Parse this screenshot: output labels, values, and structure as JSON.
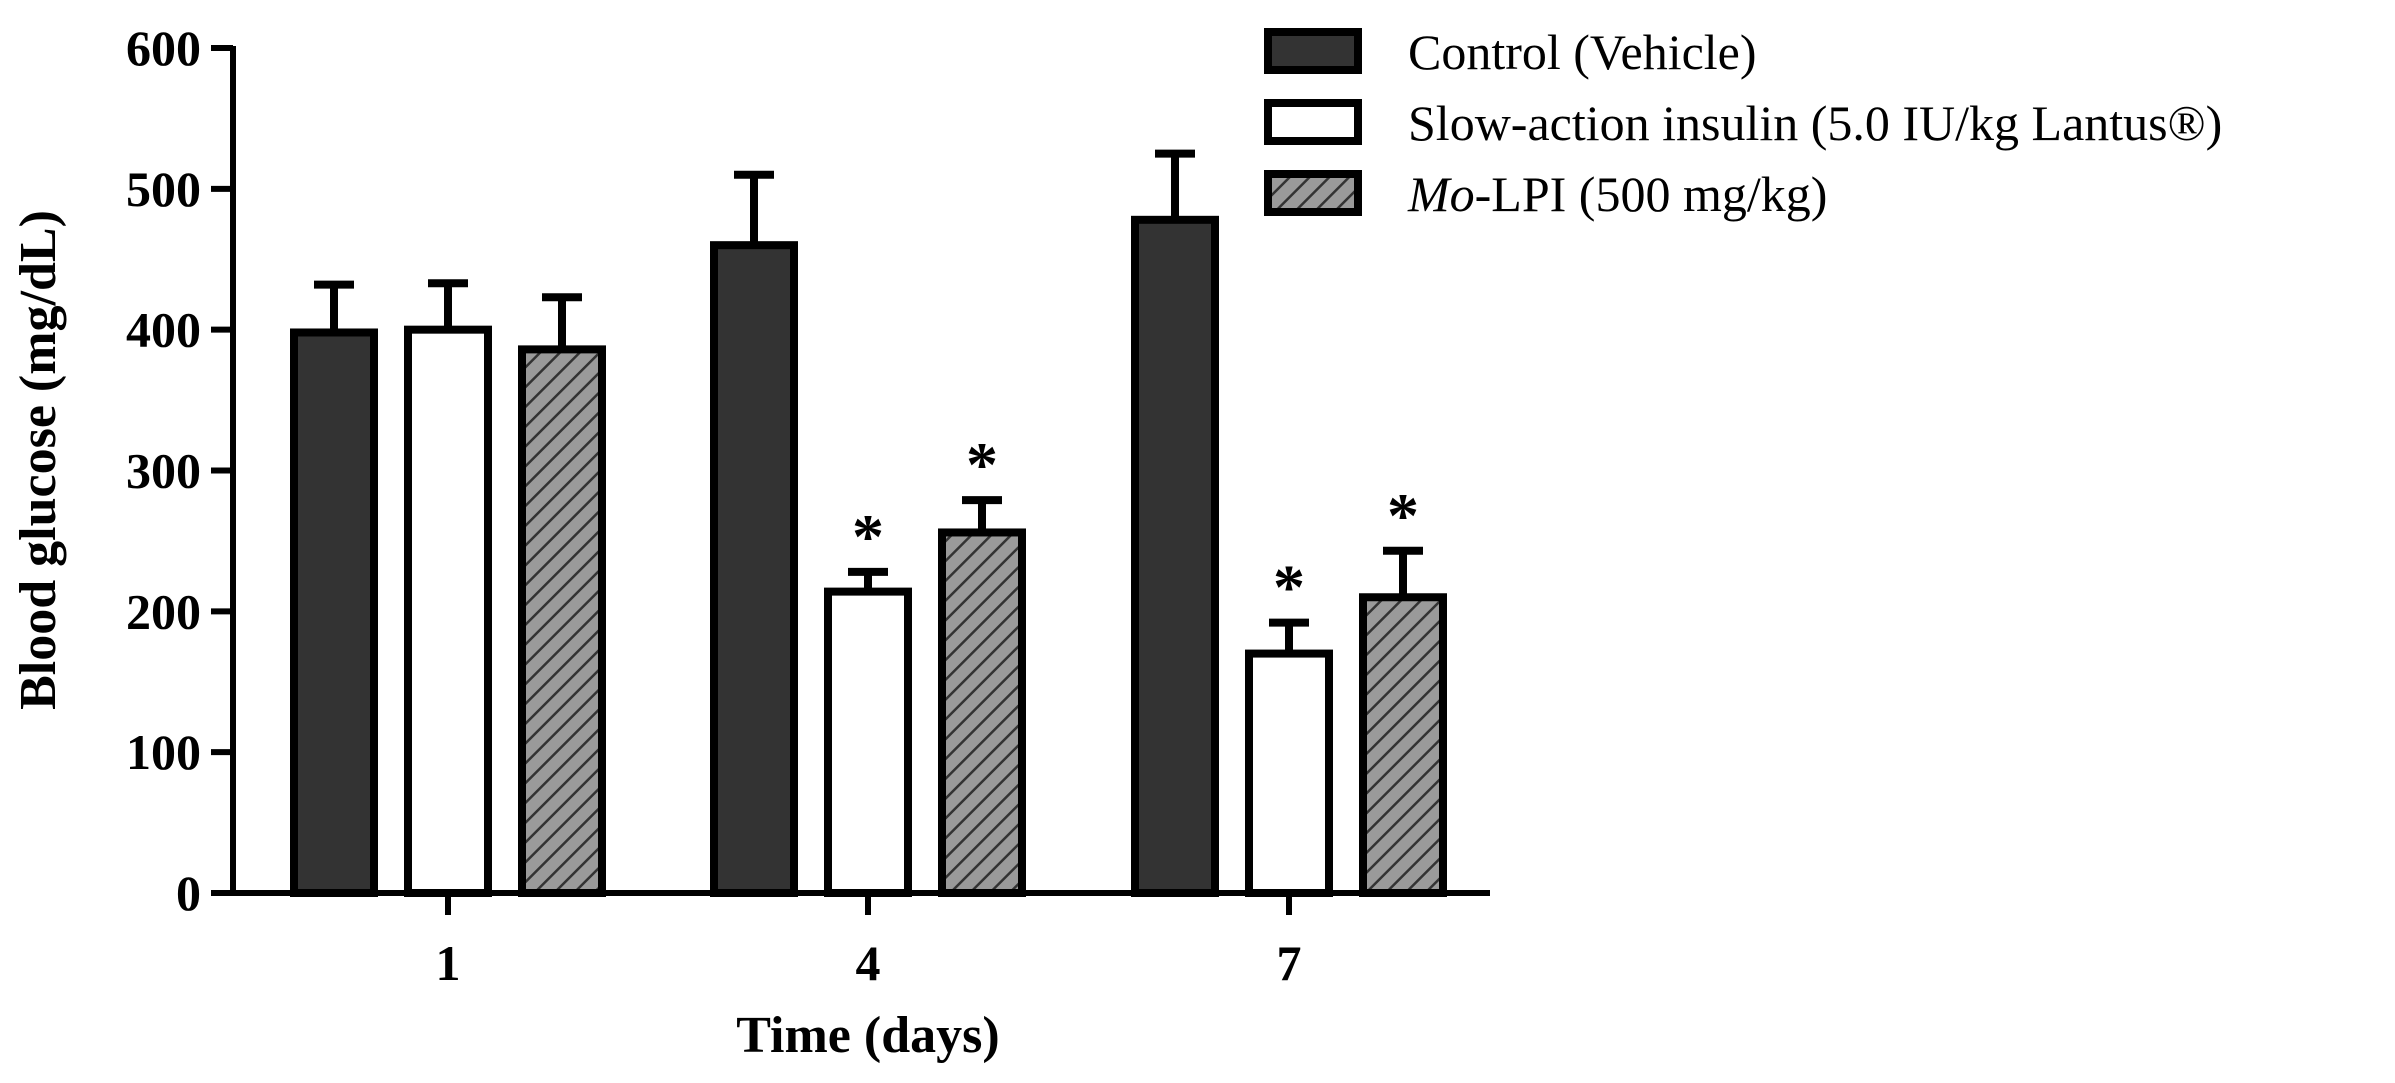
{
  "chart_data": {
    "type": "bar",
    "categories": [
      "1",
      "4",
      "7"
    ],
    "xlabel": "Time (days)",
    "ylabel": "Blood glucose (mg/dL)",
    "ylim": [
      0,
      600
    ],
    "yticks": [
      "0",
      "100",
      "200",
      "300",
      "400",
      "500",
      "600"
    ],
    "legend_position": "top-right",
    "series": [
      {
        "name": "Control (Vehicle)",
        "legend_prefix": "",
        "legend_suffix": "Control (Vehicle)",
        "fill": "#333333",
        "pattern": "solid",
        "values": [
          398,
          460,
          478
        ],
        "errors": [
          34,
          50,
          47
        ],
        "significant": [
          false,
          false,
          false
        ]
      },
      {
        "name": "Slow-action insulin (5.0 IU/kg Lantus®)",
        "legend_prefix": "",
        "legend_suffix": "Slow-action insulin (5.0 IU/kg Lantus®)",
        "fill": "#ffffff",
        "pattern": "solid",
        "values": [
          400,
          214,
          170
        ],
        "errors": [
          33,
          14,
          22
        ],
        "significant": [
          false,
          true,
          true
        ]
      },
      {
        "name": "Mo-LPI (500 mg/kg)",
        "legend_prefix": "Mo",
        "legend_suffix": "-LPI (500 mg/kg)",
        "fill": "#9a9a9a",
        "pattern": "hatch",
        "values": [
          386,
          256,
          210
        ],
        "errors": [
          37,
          23,
          33
        ],
        "significant": [
          false,
          true,
          true
        ]
      }
    ],
    "significance_marker": "*"
  }
}
